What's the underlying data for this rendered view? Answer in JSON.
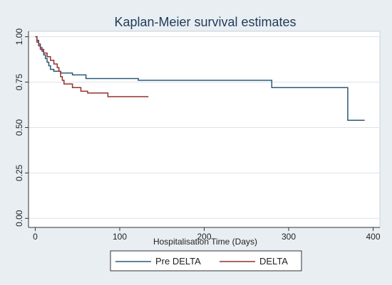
{
  "chart_data": {
    "type": "line",
    "title": "Kaplan-Meier survival estimates",
    "xlabel": "Hospitalisation Time (Days)",
    "ylabel": "",
    "xlim": [
      -8,
      408
    ],
    "ylim": [
      -0.05,
      1.03
    ],
    "x_ticks": [
      0,
      100,
      200,
      300,
      400
    ],
    "y_ticks": [
      0,
      0.25,
      0.5,
      0.75,
      1
    ],
    "x_tick_labels": [
      "0",
      "100",
      "200",
      "300",
      "400"
    ],
    "y_tick_labels": [
      "0.00",
      "0.25",
      "0.50",
      "0.75",
      "1.00"
    ],
    "grid": true,
    "legend_position": "bottom",
    "series": [
      {
        "name": "Pre DELTA",
        "color": "#2b5a78",
        "step_points": [
          [
            0,
            1.0
          ],
          [
            2,
            0.98
          ],
          [
            4,
            0.96
          ],
          [
            6,
            0.94
          ],
          [
            8,
            0.92
          ],
          [
            10,
            0.9
          ],
          [
            12,
            0.88
          ],
          [
            14,
            0.86
          ],
          [
            16,
            0.84
          ],
          [
            18,
            0.82
          ],
          [
            22,
            0.81
          ],
          [
            30,
            0.8
          ],
          [
            44,
            0.79
          ],
          [
            60,
            0.77
          ],
          [
            122,
            0.76
          ],
          [
            280,
            0.72
          ],
          [
            370,
            0.54
          ],
          [
            390,
            0.54
          ]
        ]
      },
      {
        "name": "DELTA",
        "color": "#93312f",
        "step_points": [
          [
            0,
            1.0
          ],
          [
            2,
            0.97
          ],
          [
            4,
            0.95
          ],
          [
            6,
            0.93
          ],
          [
            10,
            0.91
          ],
          [
            14,
            0.89
          ],
          [
            18,
            0.87
          ],
          [
            22,
            0.85
          ],
          [
            26,
            0.83
          ],
          [
            28,
            0.81
          ],
          [
            30,
            0.78
          ],
          [
            32,
            0.76
          ],
          [
            34,
            0.74
          ],
          [
            44,
            0.72
          ],
          [
            54,
            0.7
          ],
          [
            62,
            0.69
          ],
          [
            86,
            0.67
          ],
          [
            134,
            0.67
          ]
        ]
      }
    ]
  },
  "colors": {
    "outer_background": "#e9eef3",
    "plot_background": "#ffffff",
    "grid": "#dce3ea",
    "axis": "#333333",
    "title": "#1f3b57"
  }
}
